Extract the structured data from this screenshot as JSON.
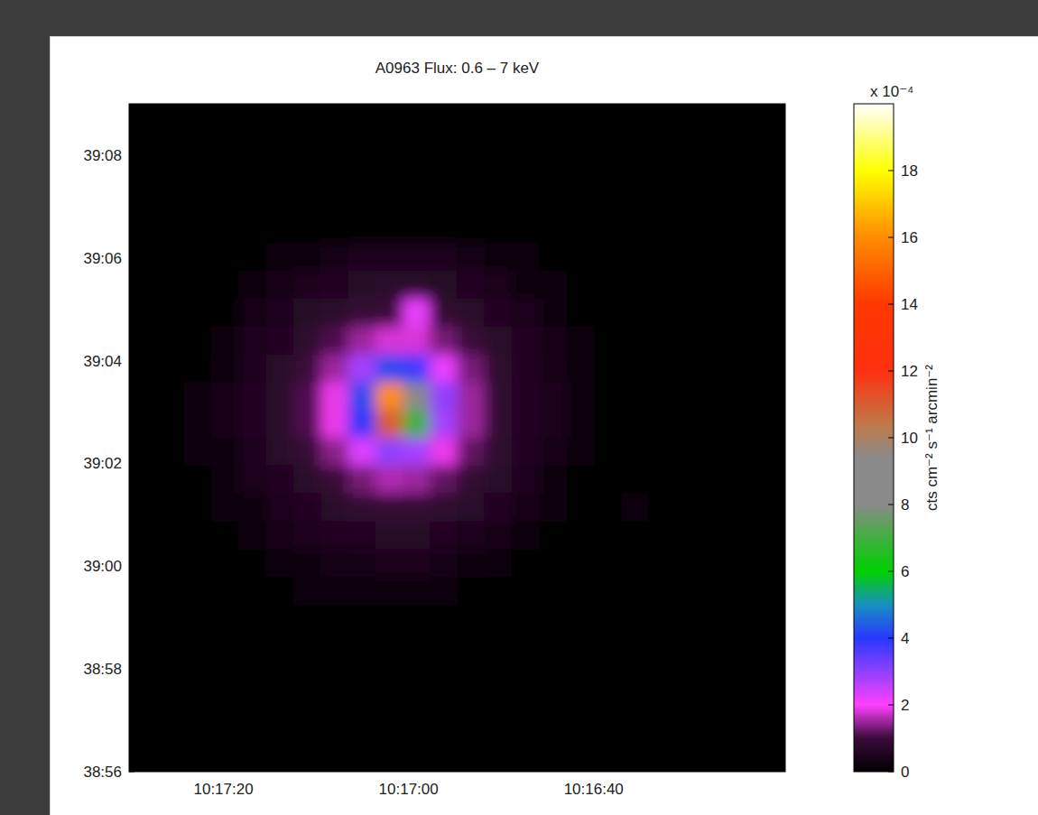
{
  "chart_data": {
    "type": "heatmap",
    "title": "A0963 Flux: 0.6 – 7 keV",
    "xlim": [
      37050.2,
      36979.3
    ],
    "xticks": [
      {
        "value": 37040,
        "label": "10:17:20"
      },
      {
        "value": 37020,
        "label": "10:17:00"
      },
      {
        "value": 37000,
        "label": "10:16:40"
      }
    ],
    "ylim": [
      2336,
      2349
    ],
    "yticks": [
      {
        "value": 2348,
        "label": "39:08"
      },
      {
        "value": 2346,
        "label": "39:06"
      },
      {
        "value": 2344,
        "label": "39:04"
      },
      {
        "value": 2342,
        "label": "39:02"
      },
      {
        "value": 2340,
        "label": "39:00"
      },
      {
        "value": 2338,
        "label": "38:58"
      },
      {
        "value": 2336,
        "label": "38:56"
      }
    ],
    "cells": [
      [
        0,
        0,
        0,
        0,
        0,
        0,
        0,
        0,
        0,
        0,
        0,
        0,
        0,
        0,
        0,
        0,
        0,
        0,
        0,
        0,
        0,
        0,
        0,
        0
      ],
      [
        0,
        0,
        0,
        0,
        0,
        0,
        0,
        0,
        0,
        0,
        0,
        0,
        0,
        0,
        0,
        0,
        0,
        0,
        0,
        0,
        0,
        0,
        0,
        0
      ],
      [
        0,
        0,
        0,
        0,
        0,
        0,
        0,
        0,
        0,
        0,
        0,
        0,
        0,
        0,
        0,
        0,
        0,
        0,
        0,
        0,
        0,
        0,
        0,
        0
      ],
      [
        0,
        0,
        0,
        0,
        0,
        0,
        0,
        0,
        0,
        0,
        0,
        0,
        0,
        0,
        0,
        0,
        0,
        0,
        0,
        0,
        0,
        0,
        0,
        0
      ],
      [
        0,
        0,
        0,
        0,
        0,
        0,
        0,
        0,
        0,
        0,
        0,
        0,
        0,
        0,
        0,
        0,
        0,
        0,
        0,
        0,
        0,
        0,
        0,
        0
      ],
      [
        0,
        0,
        0,
        0,
        0,
        0.15,
        0.3,
        0.4,
        0.45,
        0.5,
        0.5,
        0.45,
        0.4,
        0.3,
        0.15,
        0.05,
        0,
        0,
        0,
        0,
        0,
        0,
        0,
        0
      ],
      [
        0,
        0,
        0,
        0,
        0.15,
        0.35,
        0.45,
        0.6,
        0.65,
        0.7,
        0.7,
        0.65,
        0.55,
        0.45,
        0.3,
        0.2,
        0,
        0,
        0,
        0,
        0,
        0,
        0,
        0
      ],
      [
        0,
        0,
        0,
        0.1,
        0.35,
        0.5,
        0.65,
        0.75,
        0.9,
        0.95,
        2.2,
        0.85,
        0.7,
        0.6,
        0.45,
        0.3,
        0.1,
        0,
        0,
        0,
        0,
        0,
        0,
        0
      ],
      [
        0,
        0,
        0.05,
        0.25,
        0.45,
        0.6,
        0.8,
        1.1,
        1.5,
        1.8,
        1.8,
        1.3,
        0.95,
        0.7,
        0.55,
        0.35,
        0.15,
        0,
        0,
        0,
        0,
        0,
        0,
        0
      ],
      [
        0,
        0,
        0.1,
        0.3,
        0.5,
        0.7,
        0.95,
        1.5,
        2.8,
        4.2,
        3.8,
        2.2,
        1.3,
        0.8,
        0.6,
        0.4,
        0.2,
        0,
        0,
        0,
        0,
        0,
        0,
        0
      ],
      [
        0,
        0.05,
        0.15,
        0.35,
        0.55,
        0.75,
        1.1,
        1.9,
        4.2,
        16,
        8,
        3,
        1.5,
        0.85,
        0.6,
        0.45,
        0.2,
        0.05,
        0,
        0,
        0,
        0,
        0,
        0
      ],
      [
        0,
        0.05,
        0.15,
        0.35,
        0.55,
        0.75,
        1.1,
        1.9,
        4,
        11,
        7,
        2.8,
        1.5,
        0.85,
        0.6,
        0.45,
        0.2,
        0.05,
        0,
        0,
        0,
        0,
        0,
        0
      ],
      [
        0,
        0.05,
        0.15,
        0.3,
        0.5,
        0.7,
        0.9,
        1.4,
        2.3,
        3,
        2.8,
        1.9,
        1.2,
        0.8,
        0.6,
        0.4,
        0.15,
        0,
        0,
        0,
        0,
        0,
        0,
        0
      ],
      [
        0,
        0,
        0.1,
        0.25,
        0.45,
        0.6,
        0.75,
        0.95,
        1.3,
        1.6,
        1.5,
        1.2,
        0.85,
        0.7,
        0.5,
        0.3,
        0.1,
        0,
        0,
        0,
        0,
        0,
        0,
        0
      ],
      [
        0,
        0,
        0.05,
        0.15,
        0.3,
        0.45,
        0.6,
        0.7,
        0.85,
        0.9,
        0.9,
        0.8,
        0.7,
        0.55,
        0.4,
        0.2,
        0.05,
        0,
        0.15,
        0,
        0,
        0,
        0,
        0
      ],
      [
        0,
        0,
        0,
        0.1,
        0.2,
        0.35,
        0.45,
        0.55,
        0.6,
        0.65,
        0.65,
        0.6,
        0.5,
        0.4,
        0.25,
        0.1,
        0,
        0,
        0,
        0,
        0,
        0,
        0,
        0
      ],
      [
        0,
        0,
        0,
        0,
        0.1,
        0.2,
        0.3,
        0.35,
        0.4,
        0.45,
        0.45,
        0.4,
        0.3,
        0.2,
        0.1,
        0,
        0,
        0,
        0,
        0,
        0,
        0,
        0,
        0
      ],
      [
        0,
        0,
        0,
        0,
        0,
        0.1,
        0.15,
        0.2,
        0.2,
        0.2,
        0.2,
        0.15,
        0.1,
        0.05,
        0,
        0,
        0,
        0,
        0,
        0,
        0,
        0,
        0,
        0
      ],
      [
        0,
        0,
        0,
        0,
        0,
        0,
        0,
        0,
        0,
        0,
        0,
        0,
        0,
        0,
        0,
        0,
        0,
        0,
        0,
        0,
        0,
        0,
        0,
        0
      ],
      [
        0,
        0,
        0,
        0,
        0,
        0,
        0.1,
        0,
        0,
        0,
        0.05,
        0,
        0,
        0,
        0,
        0,
        0,
        0,
        0,
        0,
        0,
        0,
        0,
        0
      ],
      [
        0,
        0,
        0,
        0,
        0,
        0,
        0,
        0,
        0,
        0,
        0,
        0,
        0,
        0,
        0,
        0,
        0,
        0,
        0,
        0,
        0,
        0,
        0,
        0
      ],
      [
        0,
        0,
        0,
        0,
        0,
        0,
        0,
        0,
        0,
        0,
        0,
        0,
        0,
        0,
        0,
        0,
        0,
        0,
        0,
        0,
        0,
        0,
        0,
        0
      ],
      [
        0,
        0,
        0,
        0,
        0,
        0,
        0,
        0,
        0,
        0,
        0,
        0,
        0,
        0,
        0,
        0,
        0,
        0,
        0,
        0,
        0,
        0,
        0,
        0
      ],
      [
        0,
        0,
        0,
        0,
        0,
        0,
        0,
        0,
        0,
        0,
        0,
        0,
        0,
        0,
        0,
        0,
        0,
        0,
        0,
        0,
        0,
        0,
        0,
        0
      ]
    ],
    "colorbar": {
      "range": [
        0,
        20
      ],
      "ticks": [
        0,
        2,
        4,
        6,
        8,
        10,
        12,
        14,
        16,
        18
      ],
      "label": "cts cm⁻² s⁻¹ arcmin⁻²",
      "multiplier": "x 10⁻⁴"
    }
  }
}
